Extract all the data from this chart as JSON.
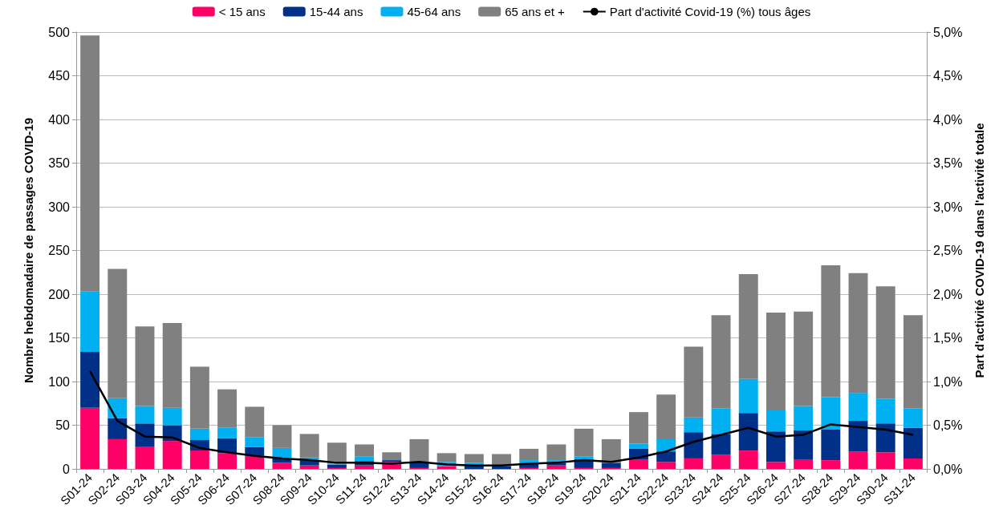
{
  "chart_data": {
    "type": "bar",
    "stacked": true,
    "xlabel": null,
    "ylabel": "Nombre hebdomadaire de passages COVID-19",
    "y2label": "Part d'activité COVID-19 dans l'activité totale",
    "categories": [
      "S01-24",
      "S02-24",
      "S03-24",
      "S04-24",
      "S05-24",
      "S06-24",
      "S07-24",
      "S08-24",
      "S09-24",
      "S10-24",
      "S11-24",
      "S12-24",
      "S13-24",
      "S14-24",
      "S15-24",
      "S16-24",
      "S17-24",
      "S18-24",
      "S19-24",
      "S20-24",
      "S21-24",
      "S22-24",
      "S23-24",
      "S24-24",
      "S25-24",
      "S26-24",
      "S27-24",
      "S28-24",
      "S29-24",
      "S30-24",
      "S31-24"
    ],
    "series": [
      {
        "name": "< 15 ans",
        "color": "#ff0066",
        "values": [
          70,
          34,
          25,
          32,
          21,
          18,
          15,
          7,
          4,
          1,
          4,
          8,
          1,
          3,
          0,
          0,
          1,
          4,
          1,
          1,
          11,
          8,
          12,
          16,
          21,
          8,
          11,
          10,
          20,
          19,
          12
        ]
      },
      {
        "name": "15-44 ans",
        "color": "#003087",
        "values": [
          64,
          24,
          27,
          18,
          12,
          17,
          10,
          5,
          6,
          4,
          5,
          2,
          7,
          null,
          4,
          3,
          5,
          3,
          10,
          6,
          12,
          12,
          30,
          24,
          43,
          35,
          33,
          35,
          35,
          33,
          35
        ]
      },
      {
        "name": "45-64 ans",
        "color": "#00b0f0",
        "values": [
          69,
          23,
          20,
          20,
          13,
          12,
          11,
          12,
          3,
          1,
          5,
          1,
          null,
          5,
          3,
          null,
          4,
          3,
          3,
          null,
          6,
          14,
          17,
          29,
          39,
          24,
          28,
          37,
          32,
          28,
          22
        ]
      },
      {
        "name": "65 ans et +",
        "color": "#808080",
        "values": [
          293,
          148,
          91,
          97,
          71,
          44,
          35,
          26,
          27,
          24,
          14,
          8,
          26,
          10,
          10,
          14,
          13,
          18,
          32,
          27,
          36,
          51,
          81,
          107,
          120,
          112,
          108,
          151,
          137,
          129,
          107
        ]
      },
      {
        "name": "Part d'activité Covid-19 (%) tous âges",
        "type": "line",
        "axis": "y2",
        "color": "#000000",
        "values": [
          1.12,
          0.55,
          0.37,
          0.36,
          0.24,
          0.19,
          0.15,
          0.12,
          0.1,
          0.07,
          0.07,
          0.06,
          0.08,
          0.05,
          0.04,
          0.04,
          0.06,
          0.07,
          0.1,
          0.08,
          0.13,
          0.2,
          0.31,
          0.39,
          0.47,
          0.37,
          0.39,
          0.51,
          0.48,
          0.45,
          0.39
        ]
      }
    ],
    "ylim": [
      0,
      500
    ],
    "yticks": [
      0,
      50,
      100,
      150,
      200,
      250,
      300,
      350,
      400,
      450,
      500
    ],
    "y2lim": [
      0,
      5
    ],
    "y2ticks": [
      {
        "value": 0,
        "label": "0,0%"
      },
      {
        "value": 0.5,
        "label": "0,5%"
      },
      {
        "value": 1,
        "label": "1,0%"
      },
      {
        "value": 1.5,
        "label": "1,5%"
      },
      {
        "value": 2,
        "label": "2,0%"
      },
      {
        "value": 2.5,
        "label": "2,5%"
      },
      {
        "value": 3,
        "label": "3,0%"
      },
      {
        "value": 3.5,
        "label": "3,5%"
      },
      {
        "value": 4,
        "label": "4,0%"
      },
      {
        "value": 4.5,
        "label": "4,5%"
      },
      {
        "value": 5,
        "label": "5,0%"
      }
    ],
    "grid": "y",
    "legend": "top",
    "marker": "none",
    "line_style": "solid"
  }
}
